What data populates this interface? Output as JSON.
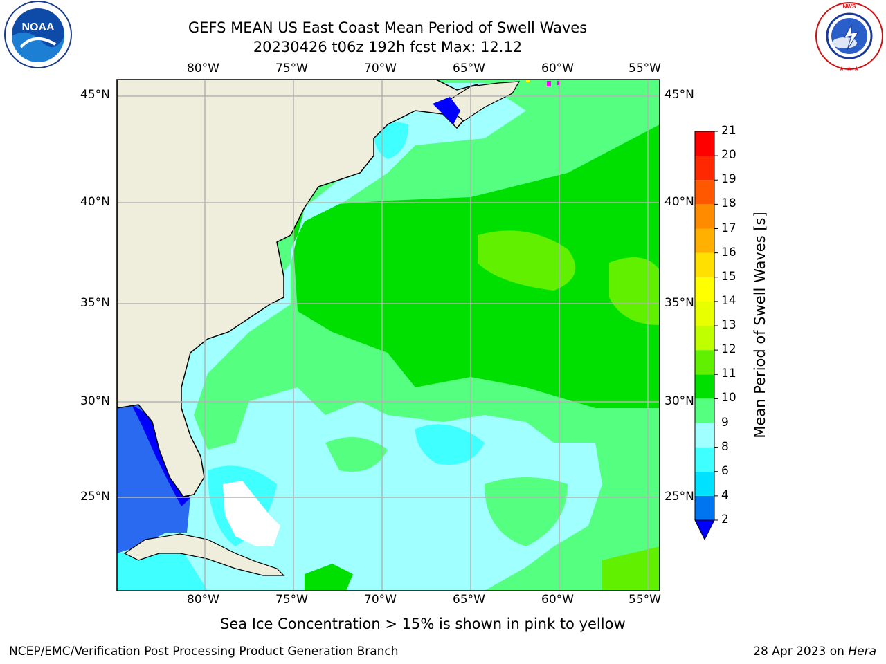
{
  "header": {
    "title_line1": "GEFS MEAN US East Coast Mean Period of Swell Waves",
    "title_line2": "20230426 t06z 192h fcst   Max: 12.12"
  },
  "logos": {
    "left": {
      "name": "noaa-logo",
      "text": "NOAA"
    },
    "right": {
      "name": "nws-logo",
      "text": "NATIONAL WEATHER SERVICE"
    }
  },
  "axes": {
    "longitude_labels": [
      "80°W",
      "75°W",
      "70°W",
      "65°W",
      "60°W",
      "55°W"
    ],
    "latitude_labels": [
      "45°N",
      "40°N",
      "35°N",
      "30°N",
      "25°N"
    ]
  },
  "colorbar": {
    "label": "Mean Period of Swell Waves [s]",
    "ticks": [
      "2",
      "4",
      "6",
      "8",
      "9",
      "10",
      "11",
      "12",
      "13",
      "14",
      "15",
      "16",
      "17",
      "18",
      "19",
      "20",
      "21"
    ],
    "colors": [
      "#0075f0",
      "#00e0ff",
      "#40ffff",
      "#a0ffff",
      "#55ff80",
      "#00e000",
      "#60f000",
      "#c0ff00",
      "#e8ff00",
      "#ffff00",
      "#ffe000",
      "#ffb000",
      "#ff8c00",
      "#ff5800",
      "#ff2800",
      "#ff0000"
    ],
    "under_color": "#0000ff"
  },
  "map_colors": {
    "land": "#efeddc",
    "deep_blue": "#2a6af0",
    "cyan": "#40ffff",
    "light_cyan": "#a0ffff",
    "light_green": "#55ff80",
    "green": "#00e000",
    "lime": "#60f000"
  },
  "sea_ice_note": "Sea Ice Concentration > 15% is shown in pink to yellow",
  "footer": {
    "left": "NCEP/EMC/Verification Post Processing Product Generation Branch",
    "right_date": "28 Apr 2023 on",
    "right_machine": "Hera"
  }
}
